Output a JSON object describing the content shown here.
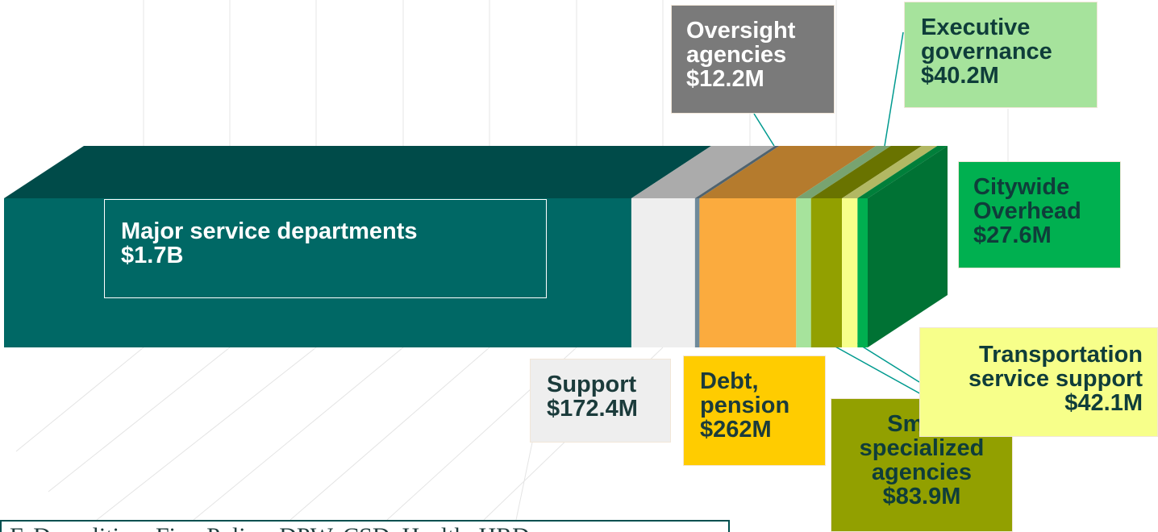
{
  "chart_data": {
    "type": "bar",
    "stacked": true,
    "series": [
      {
        "name": "Major service departments",
        "color": "#006865",
        "values": [
          1700000000
        ],
        "value_labels": [
          "$1.7B"
        ]
      },
      {
        "name": "Support",
        "color": "#eeeeee",
        "values": [
          172400000
        ],
        "value_labels": [
          "$172.4M"
        ]
      },
      {
        "name": "Oversight agencies",
        "color": "#6f8a9a",
        "values": [
          12200000
        ],
        "value_labels": [
          "$12.2M"
        ]
      },
      {
        "name": "Debt, pension",
        "color": "#fbab3e",
        "values": [
          262000000
        ],
        "value_labels": [
          "$262M"
        ]
      },
      {
        "name": "Executive governance",
        "color": "#a6e39c",
        "values": [
          40200000
        ],
        "value_labels": [
          "$40.2M"
        ]
      },
      {
        "name": "Small, specialized agencies",
        "color": "#92a000",
        "values": [
          83900000
        ],
        "value_labels": [
          "$83.9M"
        ]
      },
      {
        "name": "Transportation service support",
        "color": "#f7ff8a",
        "values": [
          42100000
        ],
        "value_labels": [
          "$42.1M"
        ]
      },
      {
        "name": "Citywide Overhead",
        "color": "#00b050",
        "values": [
          27600000
        ],
        "value_labels": [
          "$27.6M"
        ]
      }
    ],
    "note": "F, Demolition, Fire, Police, DPW, CSD, Health, HRD"
  }
}
